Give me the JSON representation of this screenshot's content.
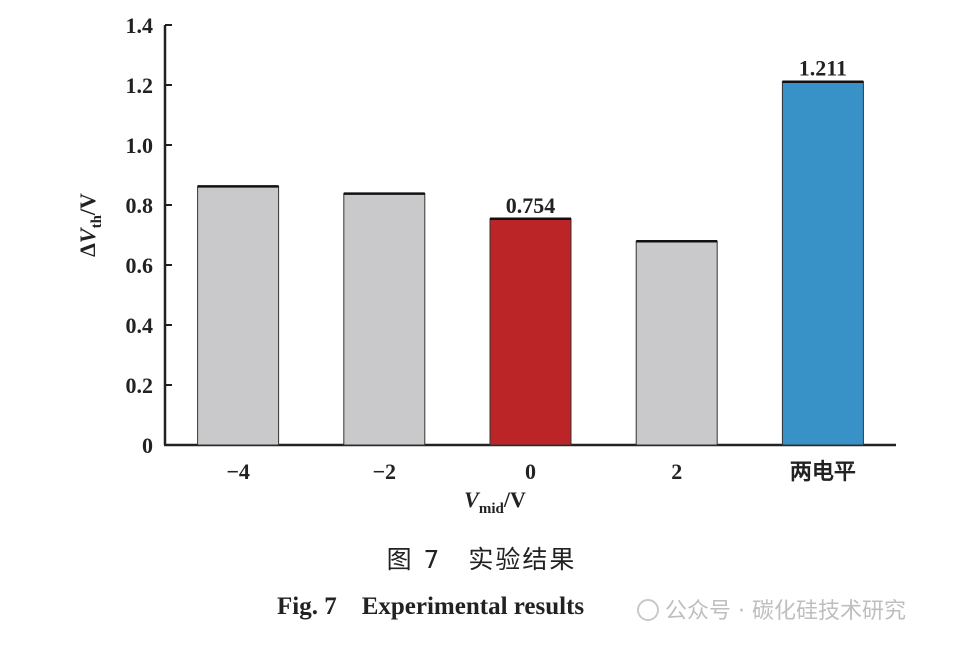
{
  "chart_data": {
    "type": "bar",
    "categories": [
      "−4",
      "−2",
      "0",
      "2",
      "两电平"
    ],
    "values": [
      0.862,
      0.838,
      0.754,
      0.679,
      1.211
    ],
    "data_labels": [
      "",
      "",
      "0.754",
      "",
      "1.211"
    ],
    "colors": [
      "#c9c9cb",
      "#c9c9cb",
      "#bb2527",
      "#c9c9cb",
      "#3892c8"
    ],
    "ylim": [
      0,
      1.4
    ],
    "yticks": [
      0,
      0.2,
      0.4,
      0.6,
      0.8,
      1.0,
      1.2,
      1.4
    ],
    "ytick_labels": [
      "0",
      "0.2",
      "0.4",
      "0.6",
      "0.8",
      "1.0",
      "1.2",
      "1.4"
    ],
    "ylabel": {
      "prefix": "Δ",
      "var": "V",
      "sub": "th",
      "unit": "/V"
    },
    "xlabel": {
      "var": "V",
      "sub": "mid",
      "unit": "/V"
    }
  },
  "caption": {
    "cn": "图 7　实验结果",
    "en": "Fig. 7 Experimental results"
  },
  "watermark": "公众号 · 碳化硅技术研究"
}
